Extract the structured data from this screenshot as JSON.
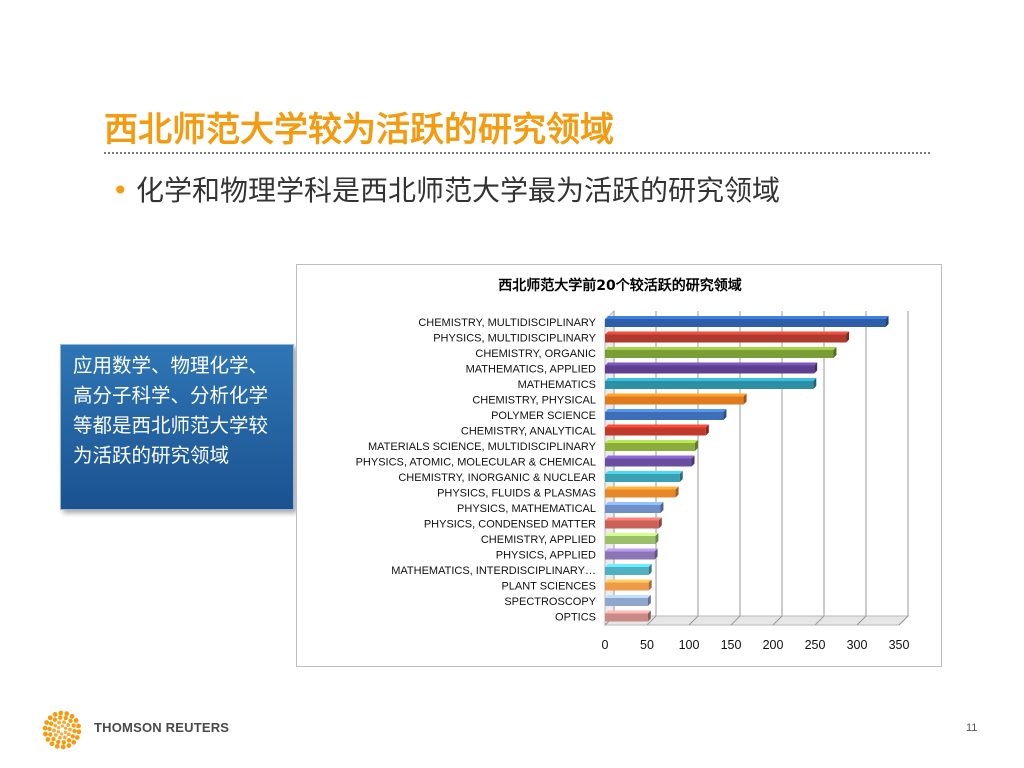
{
  "slide": {
    "title": "西北师范大学较为活跃的研究领域",
    "bullet": "化学和物理学科是西北师范大学最为活跃的研究领域",
    "callout": "应用数学、物理化学、高分子科学、分析化学等都是西北师范大学较为活跃的研究领域",
    "footer_brand": "THOMSON REUTERS",
    "page_number": "11"
  },
  "colors": {
    "title": "#f39c12",
    "callout_bg": "#1f5f9e"
  },
  "chart_data": {
    "type": "bar",
    "orientation": "horizontal",
    "title": "西北师范大学前20个较活跃的研究领域",
    "xlabel": "",
    "ylabel": "",
    "xlim": [
      0,
      350
    ],
    "xticks": [
      "0",
      "50",
      "100",
      "150",
      "200",
      "250",
      "300",
      "350"
    ],
    "grid": true,
    "legend": "none",
    "categories": [
      "CHEMISTRY, MULTIDISCIPLINARY",
      "PHYSICS, MULTIDISCIPLINARY",
      "CHEMISTRY, ORGANIC",
      "MATHEMATICS, APPLIED",
      "MATHEMATICS",
      "CHEMISTRY, PHYSICAL",
      "POLYMER SCIENCE",
      "CHEMISTRY, ANALYTICAL",
      "MATERIALS SCIENCE, MULTIDISCIPLINARY",
      "PHYSICS, ATOMIC, MOLECULAR & CHEMICAL",
      "CHEMISTRY, INORGANIC & NUCLEAR",
      "PHYSICS, FLUIDS & PLASMAS",
      "PHYSICS, MATHEMATICAL",
      "PHYSICS, CONDENSED MATTER",
      "CHEMISTRY, APPLIED",
      "PHYSICS, APPLIED",
      "MATHEMATICS, INTERDISCIPLINARY…",
      "PLANT SCIENCES",
      "SPECTROSCOPY",
      "OPTICS"
    ],
    "values": [
      334,
      287,
      272,
      249,
      248,
      165,
      141,
      120,
      107,
      103,
      89,
      84,
      66,
      64,
      60,
      59,
      52,
      52,
      51,
      51
    ],
    "bar_colors": [
      "#2e5ea8",
      "#b03a2e",
      "#7a9d35",
      "#5e3f8f",
      "#2c8fa6",
      "#e07a1f",
      "#3d6fb8",
      "#c0392b",
      "#8aad3c",
      "#6a4fa0",
      "#3aa0b4",
      "#e8862a",
      "#6f8fc7",
      "#c9605a",
      "#9cbf6a",
      "#8b75b5",
      "#4fb0c2",
      "#ef9a4a",
      "#8fa5cc",
      "#c98a86"
    ]
  }
}
